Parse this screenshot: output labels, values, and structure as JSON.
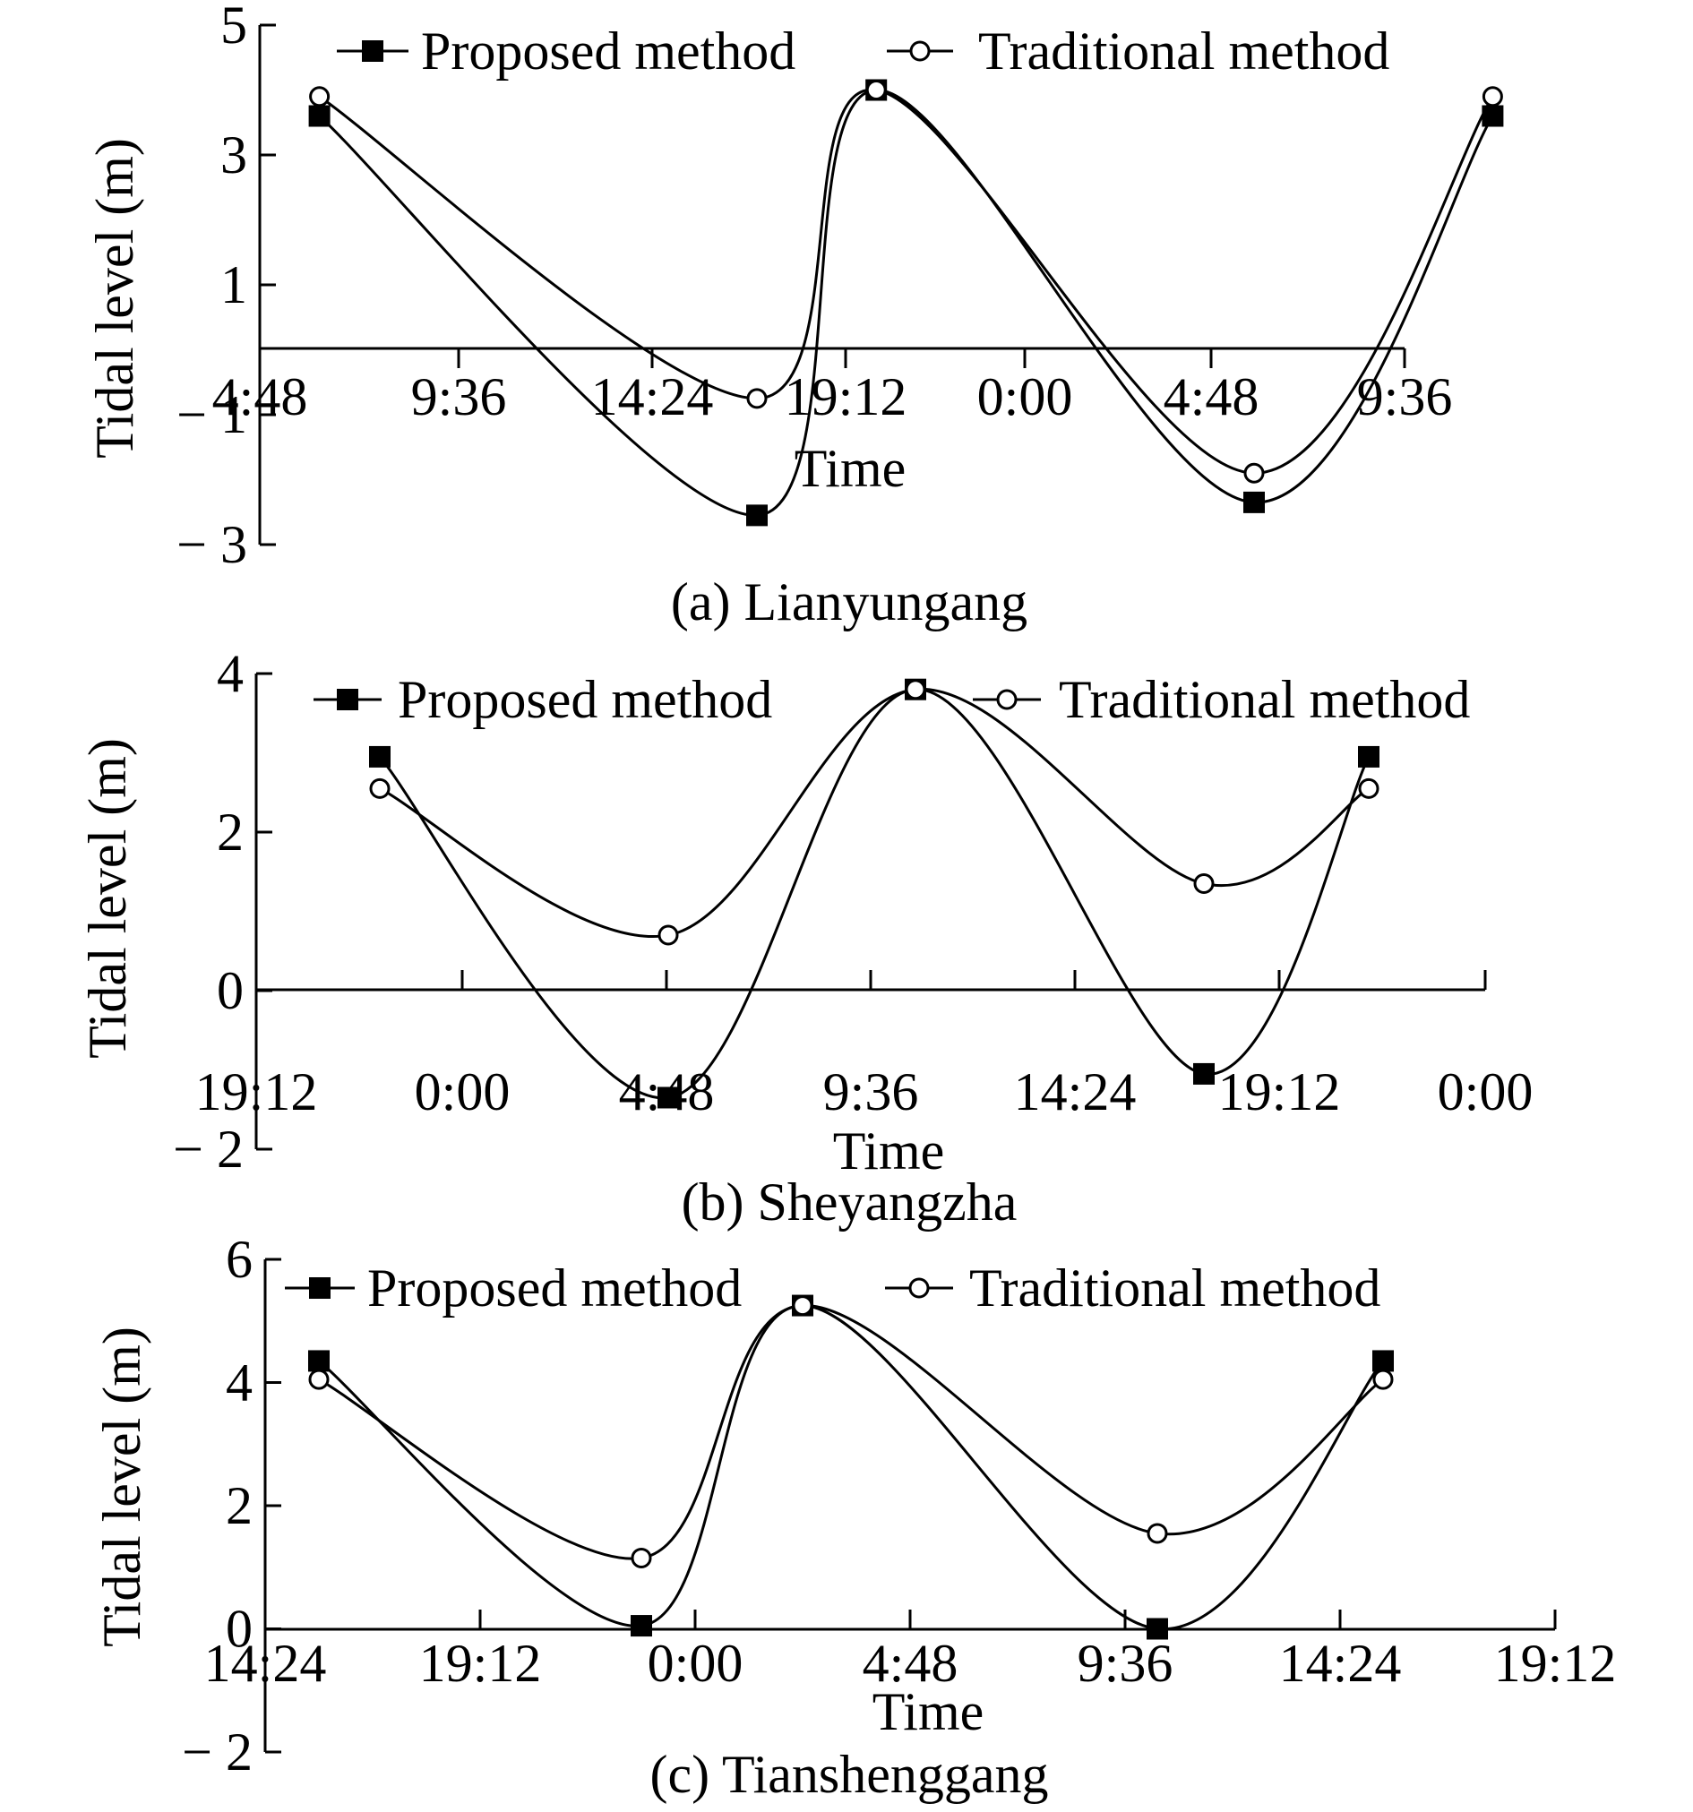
{
  "chart_data": [
    {
      "type": "line",
      "caption": "(a) Lianyungang",
      "xlabel": "Time",
      "ylabel": "Tidal level (m)",
      "ylim": [
        -3,
        5
      ],
      "yticks": [
        "5",
        "3",
        "1",
        "− 1",
        "− 3"
      ],
      "yticks_values": [
        5,
        3,
        1,
        -1,
        -3
      ],
      "xticks": [
        "4:48",
        "9:36",
        "14:24",
        "19:12",
        "0:00",
        "4:48",
        "9:36"
      ],
      "legend": {
        "placement": "top",
        "entries": [
          "Proposed method",
          "Traditional method"
        ]
      },
      "grid": false,
      "series": [
        {
          "name": "Proposed method",
          "marker": "filled-square",
          "points": [
            [
              0.3,
              3.6
            ],
            [
              2.5,
              -2.55
            ],
            [
              3.1,
              4.0
            ],
            [
              5.0,
              -2.35
            ],
            [
              6.2,
              3.6
            ]
          ]
        },
        {
          "name": "Traditional method",
          "marker": "open-circle",
          "points": [
            [
              0.3,
              3.9
            ],
            [
              2.5,
              -0.75
            ],
            [
              3.1,
              4.0
            ],
            [
              5.0,
              -1.9
            ],
            [
              6.2,
              3.9
            ]
          ]
        }
      ]
    },
    {
      "type": "line",
      "caption": "(b) Sheyangzha",
      "xlabel": "Time",
      "ylabel": "Tidal level (m)",
      "ylim": [
        -2,
        4
      ],
      "yticks": [
        "4",
        "2",
        "0",
        "− 2"
      ],
      "yticks_values": [
        4,
        2,
        0,
        -2
      ],
      "xticks": [
        "19:12",
        "0:00",
        "4:48",
        "9:36",
        "14:24",
        "19:12",
        "0:00"
      ],
      "legend": {
        "placement": "top",
        "entries": [
          "Proposed method",
          "Traditional method"
        ]
      },
      "grid": false,
      "series": [
        {
          "name": "Proposed method",
          "marker": "filled-square",
          "points": [
            [
              0.6,
              2.95
            ],
            [
              2.0,
              -1.35
            ],
            [
              3.2,
              3.8
            ],
            [
              4.6,
              -1.05
            ],
            [
              5.4,
              2.95
            ]
          ]
        },
        {
          "name": "Traditional method",
          "marker": "open-circle",
          "points": [
            [
              0.6,
              2.55
            ],
            [
              2.0,
              0.7
            ],
            [
              3.2,
              3.8
            ],
            [
              4.6,
              1.35
            ],
            [
              5.4,
              2.55
            ]
          ]
        }
      ]
    },
    {
      "type": "line",
      "caption": "(c) Tianshenggang",
      "xlabel": "Time",
      "ylabel": "Tidal level (m)",
      "ylim": [
        -2,
        6
      ],
      "yticks": [
        "6",
        "4",
        "2",
        "0",
        "− 2"
      ],
      "yticks_values": [
        6,
        4,
        2,
        0,
        -2
      ],
      "xticks": [
        "14:24",
        "19:12",
        "0:00",
        "4:48",
        "9:36",
        "14:24",
        "19:12"
      ],
      "legend": {
        "placement": "top",
        "entries": [
          "Proposed method",
          "Traditional method"
        ]
      },
      "grid": false,
      "series": [
        {
          "name": "Proposed method",
          "marker": "filled-square",
          "points": [
            [
              0.25,
              4.35
            ],
            [
              1.75,
              0.05
            ],
            [
              2.5,
              5.25
            ],
            [
              4.15,
              0.0
            ],
            [
              5.2,
              4.35
            ]
          ]
        },
        {
          "name": "Traditional method",
          "marker": "open-circle",
          "points": [
            [
              0.25,
              4.05
            ],
            [
              1.75,
              1.15
            ],
            [
              2.5,
              5.25
            ],
            [
              4.15,
              1.55
            ],
            [
              5.2,
              4.05
            ]
          ]
        }
      ]
    }
  ]
}
